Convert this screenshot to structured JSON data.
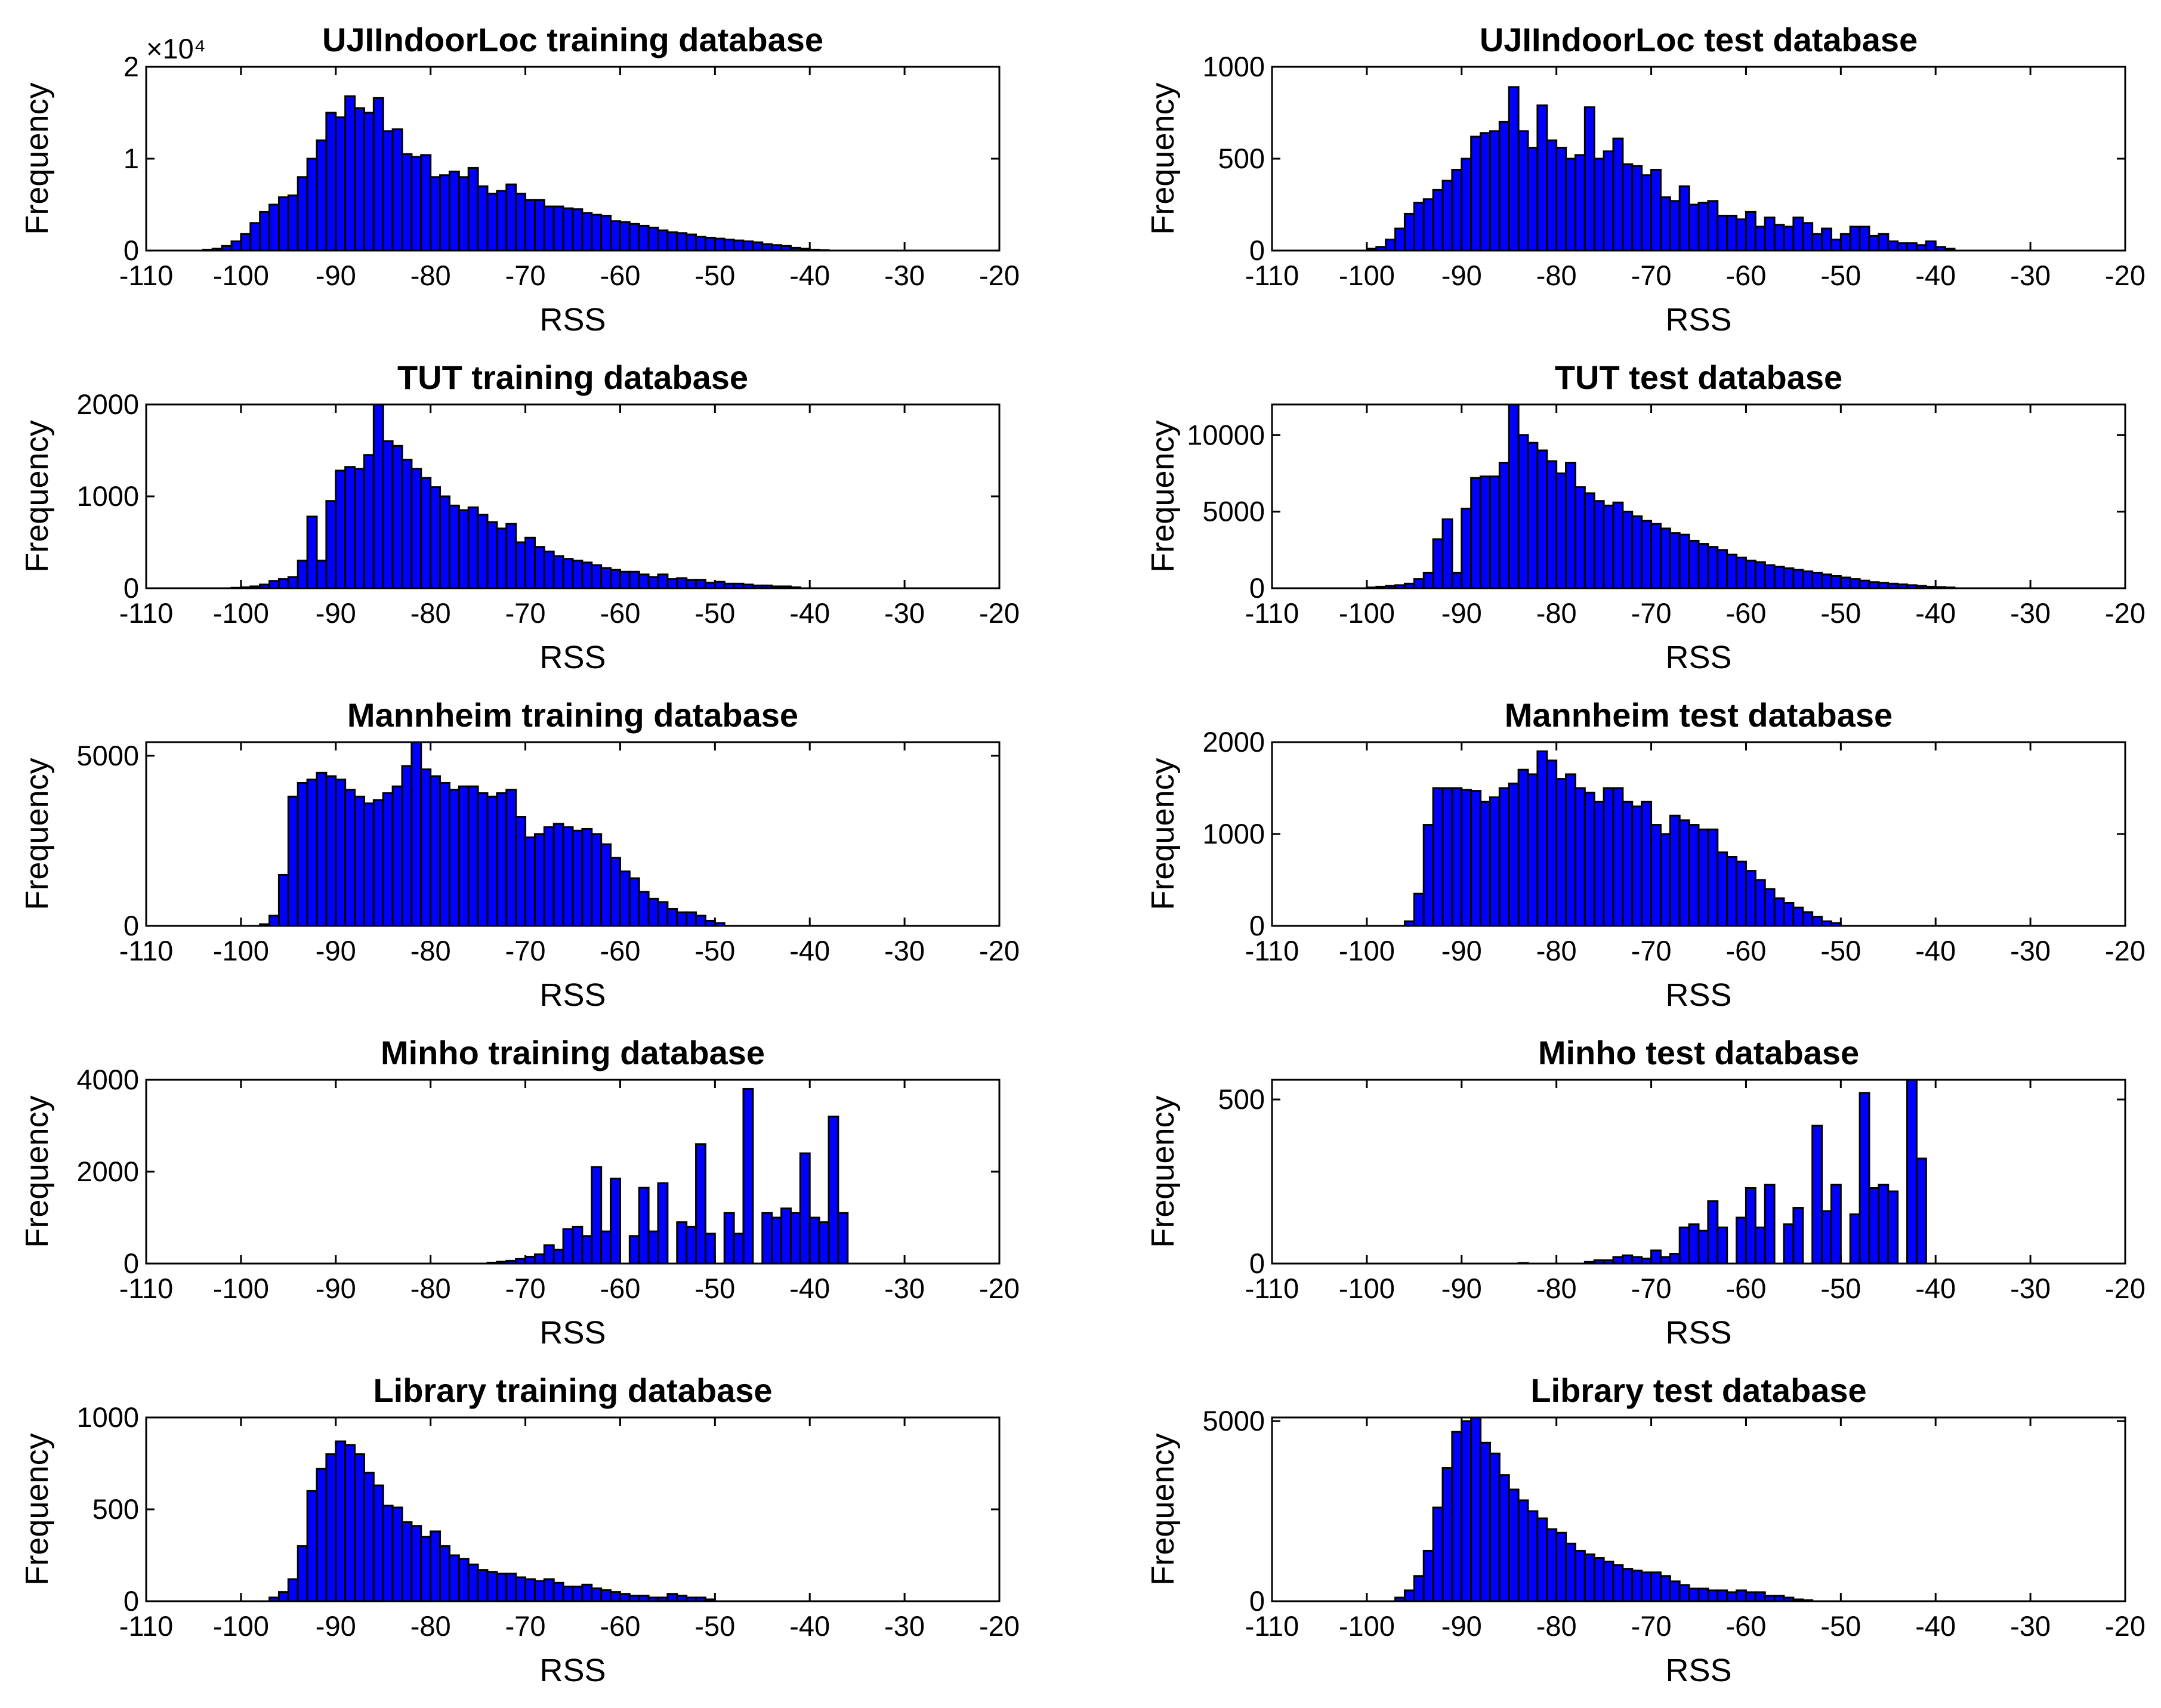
{
  "figure": {
    "bar_color": "#0000ff",
    "edge_color": "#000000"
  },
  "chart_data": [
    {
      "type": "bar",
      "title": "UJIIndoorLoc training database",
      "xlabel": "RSS",
      "ylabel": "Frequency",
      "xlim": [
        -110,
        -20
      ],
      "ylim": [
        0,
        20000
      ],
      "xticks": [
        -110,
        -100,
        -90,
        -80,
        -70,
        -60,
        -50,
        -40,
        -30,
        -20
      ],
      "xtick_labels": [
        "-110",
        "-100",
        "-90",
        "-80",
        "-70",
        "-60",
        "-50",
        "-40",
        "-30",
        "-20"
      ],
      "yticks": [
        0,
        10000,
        20000
      ],
      "ytick_labels": [
        "0",
        "1",
        "2"
      ],
      "y_exponent": "×10⁴",
      "bin_start": -104,
      "bin_width": 1,
      "values": [
        100,
        200,
        500,
        1000,
        1800,
        3000,
        4200,
        5000,
        5800,
        6000,
        8000,
        10000,
        12000,
        15000,
        14500,
        16800,
        15500,
        15000,
        16600,
        13000,
        13200,
        10500,
        10200,
        10400,
        8000,
        8200,
        8600,
        8000,
        9000,
        7000,
        6200,
        6500,
        7200,
        6200,
        5500,
        5500,
        4800,
        4800,
        4600,
        4500,
        4100,
        3900,
        3800,
        3200,
        3100,
        2900,
        2700,
        2500,
        2200,
        2000,
        1900,
        1750,
        1500,
        1400,
        1300,
        1200,
        1100,
        1000,
        900,
        700,
        600,
        500,
        300,
        200,
        100,
        50
      ]
    },
    {
      "type": "bar",
      "title": "UJIIndoorLoc test database",
      "xlabel": "RSS",
      "ylabel": "Frequency",
      "xlim": [
        -110,
        -20
      ],
      "ylim": [
        0,
        1000
      ],
      "xticks": [
        -110,
        -100,
        -90,
        -80,
        -70,
        -60,
        -50,
        -40,
        -30,
        -20
      ],
      "xtick_labels": [
        "-110",
        "-100",
        "-90",
        "-80",
        "-70",
        "-60",
        "-50",
        "-40",
        "-30",
        "-20"
      ],
      "yticks": [
        0,
        500,
        1000
      ],
      "ytick_labels": [
        "0",
        "500",
        "1000"
      ],
      "bin_start": -100,
      "bin_width": 1,
      "values": [
        10,
        20,
        60,
        120,
        200,
        260,
        280,
        330,
        380,
        440,
        500,
        620,
        640,
        650,
        700,
        890,
        650,
        560,
        790,
        600,
        560,
        500,
        520,
        780,
        500,
        540,
        610,
        470,
        460,
        410,
        440,
        290,
        270,
        350,
        250,
        260,
        270,
        190,
        190,
        170,
        210,
        130,
        180,
        140,
        130,
        180,
        150,
        90,
        120,
        60,
        90,
        130,
        130,
        80,
        90,
        50,
        40,
        40,
        30,
        50,
        20,
        10
      ]
    },
    {
      "type": "bar",
      "title": "TUT training database",
      "xlabel": "RSS",
      "ylabel": "Frequency",
      "xlim": [
        -110,
        -20
      ],
      "ylim": [
        0,
        2000
      ],
      "xticks": [
        -110,
        -100,
        -90,
        -80,
        -70,
        -60,
        -50,
        -40,
        -30,
        -20
      ],
      "xtick_labels": [
        "-110",
        "-100",
        "-90",
        "-80",
        "-70",
        "-60",
        "-50",
        "-40",
        "-30",
        "-20"
      ],
      "yticks": [
        0,
        1000,
        2000
      ],
      "ytick_labels": [
        "0",
        "1000",
        "2000"
      ],
      "bin_start": -101,
      "bin_width": 1,
      "values": [
        5,
        10,
        20,
        40,
        80,
        100,
        120,
        300,
        780,
        300,
        950,
        1280,
        1320,
        1300,
        1450,
        2000,
        1600,
        1550,
        1400,
        1300,
        1200,
        1100,
        1000,
        900,
        850,
        880,
        800,
        720,
        650,
        700,
        500,
        550,
        450,
        400,
        350,
        320,
        300,
        280,
        250,
        220,
        200,
        180,
        180,
        150,
        120,
        150,
        100,
        110,
        90,
        90,
        60,
        70,
        50,
        50,
        40,
        30,
        30,
        20,
        20,
        10
      ]
    },
    {
      "type": "bar",
      "title": "TUT test database",
      "xlabel": "RSS",
      "ylabel": "Frequency",
      "xlim": [
        -110,
        -20
      ],
      "ylim": [
        0,
        12000
      ],
      "xticks": [
        -110,
        -100,
        -90,
        -80,
        -70,
        -60,
        -50,
        -40,
        -30,
        -20
      ],
      "xtick_labels": [
        "-110",
        "-100",
        "-90",
        "-80",
        "-70",
        "-60",
        "-50",
        "-40",
        "-30",
        "-20"
      ],
      "yticks": [
        0,
        5000,
        10000
      ],
      "ytick_labels": [
        "0",
        "5000",
        "10000"
      ],
      "bin_start": -100,
      "bin_width": 1,
      "values": [
        50,
        100,
        150,
        200,
        300,
        600,
        1000,
        3200,
        4500,
        1000,
        5200,
        7200,
        7300,
        7300,
        8200,
        12000,
        10000,
        9500,
        9000,
        8300,
        7500,
        8200,
        6600,
        6200,
        5700,
        5400,
        5600,
        5000,
        4700,
        4400,
        4200,
        3900,
        3600,
        3500,
        3100,
        2900,
        2700,
        2500,
        2200,
        2000,
        1800,
        1700,
        1500,
        1400,
        1300,
        1200,
        1100,
        1000,
        900,
        800,
        700,
        600,
        500,
        400,
        350,
        300,
        250,
        200,
        150,
        100,
        80,
        50
      ]
    },
    {
      "type": "bar",
      "title": "Mannheim training database",
      "xlabel": "RSS",
      "ylabel": "Frequency",
      "xlim": [
        -110,
        -20
      ],
      "ylim": [
        0,
        5400
      ],
      "xticks": [
        -110,
        -100,
        -90,
        -80,
        -70,
        -60,
        -50,
        -40,
        -30,
        -20
      ],
      "xtick_labels": [
        "-110",
        "-100",
        "-90",
        "-80",
        "-70",
        "-60",
        "-50",
        "-40",
        "-30",
        "-20"
      ],
      "yticks": [
        0,
        5000
      ],
      "ytick_labels": [
        "0",
        "5000"
      ],
      "bin_start": -98,
      "bin_width": 1,
      "values": [
        50,
        300,
        1500,
        3800,
        4200,
        4300,
        4500,
        4400,
        4300,
        4000,
        3800,
        3600,
        3700,
        3900,
        4100,
        4700,
        5400,
        4600,
        4400,
        4200,
        4000,
        4100,
        4100,
        3900,
        3800,
        3900,
        4000,
        3200,
        2600,
        2700,
        2900,
        3000,
        2900,
        2800,
        2850,
        2700,
        2400,
        2000,
        1600,
        1400,
        1000,
        800,
        700,
        500,
        400,
        400,
        300,
        150,
        80
      ]
    },
    {
      "type": "bar",
      "title": "Mannheim test database",
      "xlabel": "RSS",
      "ylabel": "Frequency",
      "xlim": [
        -110,
        -20
      ],
      "ylim": [
        0,
        2000
      ],
      "xticks": [
        -110,
        -100,
        -90,
        -80,
        -70,
        -60,
        -50,
        -40,
        -30,
        -20
      ],
      "xtick_labels": [
        "-110",
        "-100",
        "-90",
        "-80",
        "-70",
        "-60",
        "-50",
        "-40",
        "-30",
        "-20"
      ],
      "yticks": [
        0,
        1000,
        2000
      ],
      "ytick_labels": [
        "0",
        "1000",
        "2000"
      ],
      "bin_start": -96,
      "bin_width": 1,
      "values": [
        50,
        350,
        1100,
        1500,
        1500,
        1500,
        1480,
        1470,
        1350,
        1400,
        1500,
        1550,
        1700,
        1650,
        1900,
        1800,
        1600,
        1650,
        1500,
        1450,
        1350,
        1500,
        1500,
        1350,
        1300,
        1350,
        1100,
        1000,
        1200,
        1150,
        1100,
        1050,
        1050,
        800,
        750,
        700,
        600,
        500,
        400,
        300,
        250,
        200,
        150,
        100,
        50,
        30
      ]
    },
    {
      "type": "bar",
      "title": "Minho training database",
      "xlabel": "RSS",
      "ylabel": "Frequency",
      "xlim": [
        -110,
        -20
      ],
      "ylim": [
        0,
        4000
      ],
      "xticks": [
        -110,
        -100,
        -90,
        -80,
        -70,
        -60,
        -50,
        -40,
        -30,
        -20
      ],
      "xtick_labels": [
        "-110",
        "-100",
        "-90",
        "-80",
        "-70",
        "-60",
        "-50",
        "-40",
        "-30",
        "-20"
      ],
      "yticks": [
        0,
        2000,
        4000
      ],
      "ytick_labels": [
        "0",
        "2000",
        "4000"
      ],
      "bin_start": -74,
      "bin_width": 1,
      "values": [
        20,
        40,
        60,
        100,
        150,
        200,
        400,
        300,
        750,
        800,
        600,
        2100,
        700,
        1850,
        0,
        600,
        1650,
        700,
        1750,
        0,
        900,
        800,
        2600,
        650,
        0,
        1100,
        650,
        3800,
        0,
        1100,
        1000,
        1200,
        1100,
        2400,
        1000,
        900,
        3200,
        1100
      ]
    },
    {
      "type": "bar",
      "title": "Minho test database",
      "xlabel": "RSS",
      "ylabel": "Frequency",
      "xlim": [
        -110,
        -20
      ],
      "ylim": [
        0,
        560
      ],
      "xticks": [
        -110,
        -100,
        -90,
        -80,
        -70,
        -60,
        -50,
        -40,
        -30,
        -20
      ],
      "xtick_labels": [
        "-110",
        "-100",
        "-90",
        "-80",
        "-70",
        "-60",
        "-50",
        "-40",
        "-30",
        "-20"
      ],
      "yticks": [
        0,
        500
      ],
      "ytick_labels": [
        "0",
        "500"
      ],
      "bin_start": -84,
      "bin_width": 1,
      "values": [
        2,
        0,
        0,
        0,
        0,
        0,
        0,
        5,
        10,
        10,
        20,
        25,
        20,
        15,
        40,
        20,
        30,
        110,
        120,
        100,
        190,
        110,
        0,
        140,
        230,
        110,
        240,
        0,
        120,
        170,
        0,
        420,
        160,
        240,
        0,
        150,
        520,
        230,
        240,
        220,
        0,
        580,
        320
      ]
    },
    {
      "type": "bar",
      "title": "Library training database",
      "xlabel": "RSS",
      "ylabel": "Frequency",
      "xlim": [
        -110,
        -20
      ],
      "ylim": [
        0,
        1000
      ],
      "xticks": [
        -110,
        -100,
        -90,
        -80,
        -70,
        -60,
        -50,
        -40,
        -30,
        -20
      ],
      "xtick_labels": [
        "-110",
        "-100",
        "-90",
        "-80",
        "-70",
        "-60",
        "-50",
        "-40",
        "-30",
        "-20"
      ],
      "yticks": [
        0,
        500,
        1000
      ],
      "ytick_labels": [
        "0",
        "500",
        "1000"
      ],
      "bin_start": -97,
      "bin_width": 1,
      "values": [
        20,
        50,
        120,
        300,
        600,
        720,
        800,
        870,
        850,
        800,
        700,
        630,
        520,
        510,
        430,
        410,
        350,
        380,
        300,
        250,
        230,
        200,
        170,
        160,
        150,
        150,
        130,
        120,
        110,
        120,
        100,
        80,
        80,
        90,
        70,
        60,
        50,
        40,
        30,
        30,
        20,
        20,
        40,
        30,
        20,
        20,
        10
      ]
    },
    {
      "type": "bar",
      "title": "Library test database",
      "xlabel": "RSS",
      "ylabel": "Frequency",
      "xlim": [
        -110,
        -20
      ],
      "ylim": [
        0,
        5100
      ],
      "xticks": [
        -110,
        -100,
        -90,
        -80,
        -70,
        -60,
        -50,
        -40,
        -30,
        -20
      ],
      "xtick_labels": [
        "-110",
        "-100",
        "-90",
        "-80",
        "-70",
        "-60",
        "-50",
        "-40",
        "-30",
        "-20"
      ],
      "yticks": [
        0,
        5000
      ],
      "ytick_labels": [
        "0",
        "5000"
      ],
      "bin_start": -97,
      "bin_width": 1,
      "values": [
        100,
        300,
        700,
        1400,
        2600,
        3700,
        4700,
        5000,
        5100,
        4400,
        4100,
        3500,
        3100,
        2800,
        2500,
        2300,
        2000,
        1900,
        1600,
        1400,
        1300,
        1200,
        1100,
        1000,
        900,
        850,
        800,
        800,
        700,
        550,
        450,
        350,
        350,
        300,
        300,
        250,
        300,
        250,
        250,
        150,
        150,
        100,
        50,
        30
      ]
    }
  ]
}
